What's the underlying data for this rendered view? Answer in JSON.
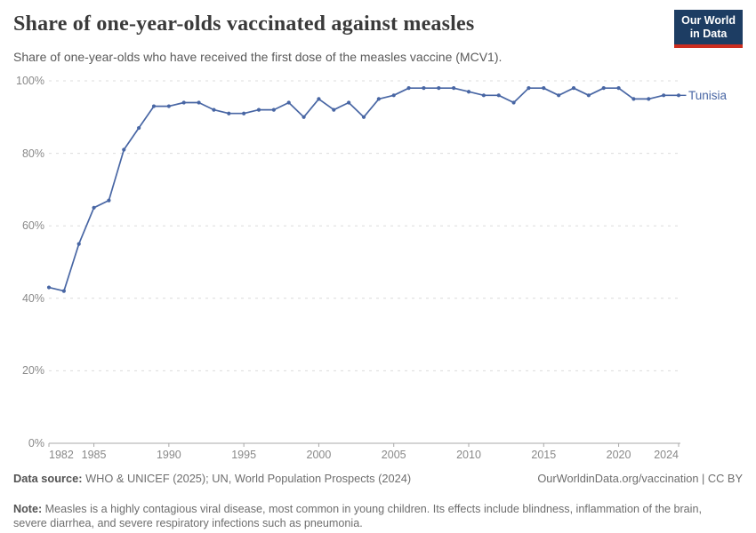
{
  "header": {
    "title": "Share of one-year-olds vaccinated against measles",
    "subtitle": "Share of one-year-olds who have received the first dose of the measles vaccine (MCV1).",
    "logo": {
      "line1": "Our World",
      "line2": "in Data"
    }
  },
  "colors": {
    "series_blue": "#4866a4",
    "grid_gray": "#dcdcdc",
    "axis_gray": "#a8a8a8",
    "logo_navy": "#1d3d63",
    "logo_red": "#cc2d1f"
  },
  "chart_data": {
    "type": "line",
    "title": "Share of one-year-olds vaccinated against measles",
    "xlabel": "",
    "ylabel": "",
    "ylim": [
      0,
      100
    ],
    "x_range": [
      1982,
      2024
    ],
    "grid": "horizontal-dashed",
    "legend_position": "end-of-line-label",
    "yticks": {
      "values": [
        0,
        20,
        40,
        60,
        80,
        100
      ],
      "labels": [
        "0%",
        "20%",
        "40%",
        "60%",
        "80%",
        "100%"
      ]
    },
    "xticks": [
      1982,
      1985,
      1990,
      1995,
      2000,
      2005,
      2010,
      2015,
      2020,
      2024
    ],
    "x": [
      1982,
      1983,
      1984,
      1985,
      1986,
      1987,
      1988,
      1989,
      1990,
      1991,
      1992,
      1993,
      1994,
      1995,
      1996,
      1997,
      1998,
      1999,
      2000,
      2001,
      2002,
      2003,
      2004,
      2005,
      2006,
      2007,
      2008,
      2009,
      2010,
      2011,
      2012,
      2013,
      2014,
      2015,
      2016,
      2017,
      2018,
      2019,
      2020,
      2021,
      2022,
      2023,
      2024
    ],
    "series": [
      {
        "name": "Tunisia",
        "color": "#4866a4",
        "values": [
          43,
          42,
          55,
          65,
          67,
          81,
          87,
          93,
          93,
          94,
          94,
          92,
          91,
          91,
          92,
          92,
          94,
          90,
          95,
          92,
          94,
          90,
          95,
          96,
          98,
          98,
          98,
          98,
          97,
          96,
          96,
          94,
          98,
          98,
          96,
          98,
          96,
          98,
          98,
          95,
          95,
          96,
          96
        ]
      }
    ]
  },
  "footer": {
    "datasource_label": "Data source:",
    "datasource_text": " WHO & UNICEF (2025); UN, World Population Prospects (2024)",
    "link": "OurWorldinData.org/vaccination | CC BY",
    "note_label": "Note:",
    "note_text": " Measles is a highly contagious viral disease, most common in young children. Its effects include blindness, inflammation of the brain, severe diarrhea, and severe respiratory infections such as pneumonia."
  }
}
